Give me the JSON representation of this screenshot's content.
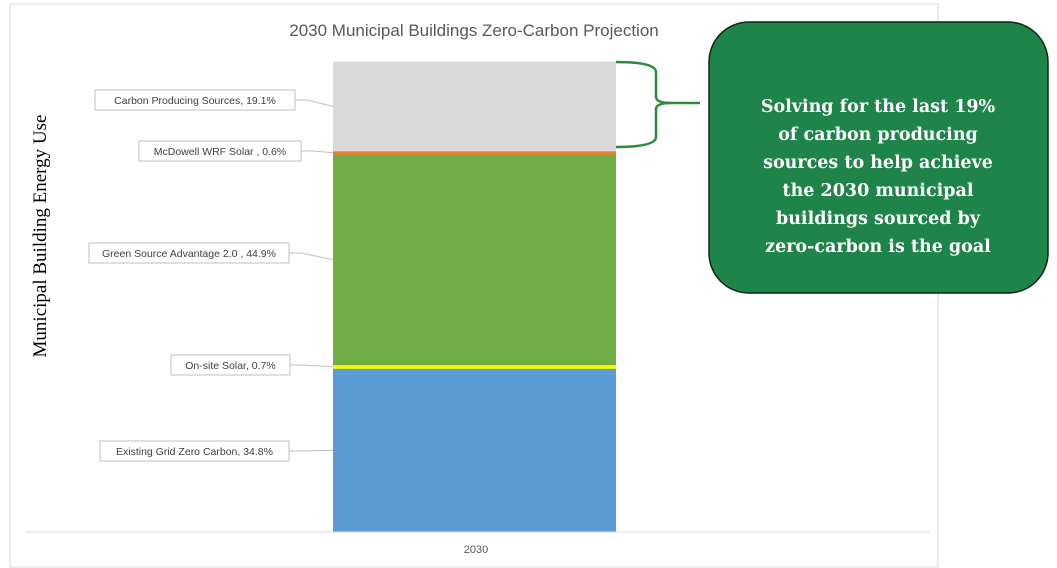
{
  "chart_data": {
    "type": "bar",
    "stacked": true,
    "title": "2030 Municipal Buildings Zero-Carbon Projection",
    "ylabel": "Municipal Building Energy Use",
    "xlabel": "",
    "categories": [
      "2030"
    ],
    "ylim": [
      0,
      100
    ],
    "grid": false,
    "series": [
      {
        "name": "Existing Grid Zero Carbon",
        "values": [
          34.8
        ],
        "label": "Existing Grid Zero Carbon, 34.8%",
        "color": "#5b9bd5"
      },
      {
        "name": "On-site Solar",
        "values": [
          0.7
        ],
        "label": "On-site Solar, 0.7%",
        "color": "#ffff00"
      },
      {
        "name": "Green Source Advantage 2.0",
        "values": [
          44.9
        ],
        "label": "Green Source Advantage 2.0 , 44.9%",
        "color": "#70ad47"
      },
      {
        "name": "McDowell WRF Solar",
        "values": [
          0.6
        ],
        "label": "McDowell WRF Solar , 0.6%",
        "color": "#ed7d31"
      },
      {
        "name": "Carbon Producing Sources",
        "values": [
          19.1
        ],
        "label": "Carbon Producing Sources, 19.1%",
        "color": "#d9d9d9"
      }
    ]
  },
  "callout": {
    "lines": [
      "Solving for the last 19%",
      "of carbon producing",
      "sources to help achieve",
      "the 2030 municipal",
      "buildings sourced by",
      "zero-carbon is the goal"
    ],
    "fill": "#1e8449",
    "border": "#0b2a14"
  },
  "colors": {
    "bracket": "#2e8b3e",
    "frame": "#d9d9d9"
  }
}
